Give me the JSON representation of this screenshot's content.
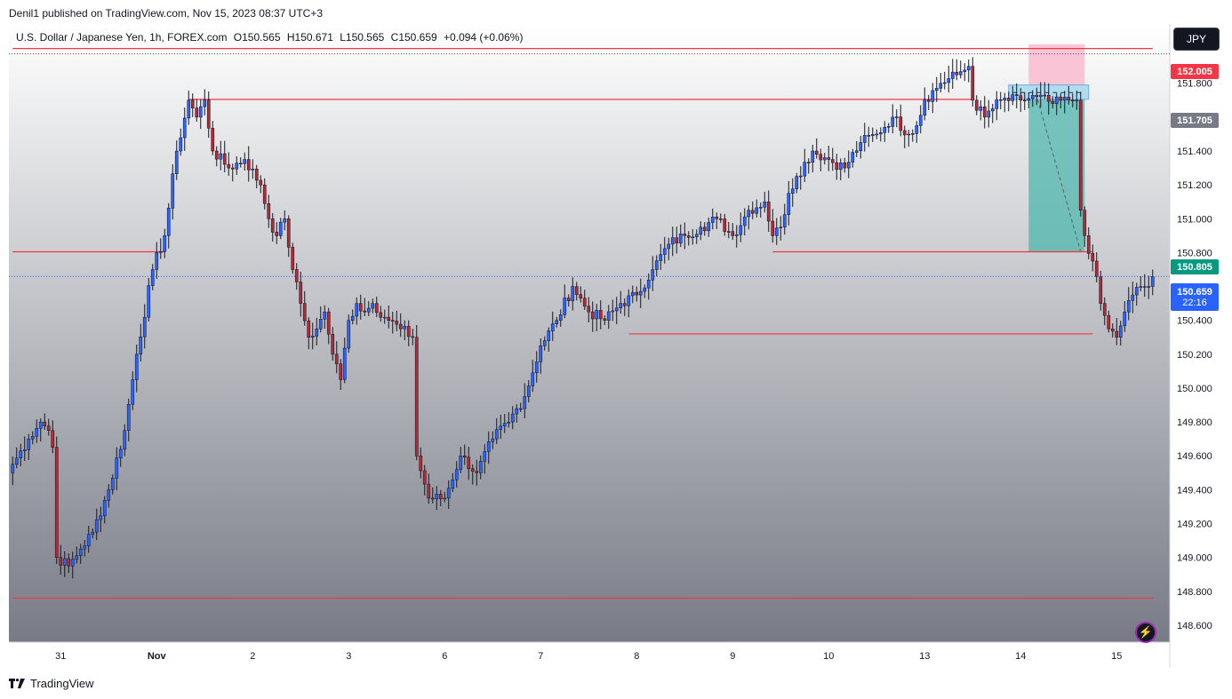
{
  "published": "Denil1 published on TradingView.com, Nov 15, 2023 08:37 UTC+3",
  "symbol": {
    "name": "U.S. Dollar / Japanese Yen, 1h, FOREX.com",
    "open": "O150.565",
    "high": "H150.671",
    "low": "L150.565",
    "close": "C150.659",
    "change": "+0.094 (+0.06%)"
  },
  "currency_button": "JPY",
  "price_tags": {
    "level_red": "152.005",
    "level_gray": "151.705",
    "level_green": "150.805",
    "last_price": "150.659",
    "countdown": "22:16"
  },
  "footer": {
    "brand": "TradingView"
  },
  "colors": {
    "bull": "#2962ff",
    "bear": "#b22833",
    "level_line": "#f23645",
    "last_price": "#2962ff",
    "stop_zone": "#f8bbd0",
    "target_zone": "#4db6ac",
    "entry_zone": "#9fd8ef"
  },
  "chart_data": {
    "type": "candlestick",
    "symbol": "USDJPY",
    "timeframe": "1h",
    "ylim": [
      148.5,
      152.15
    ],
    "y_ticks": [
      148.6,
      148.8,
      149.0,
      149.2,
      149.4,
      149.6,
      149.8,
      150.0,
      150.2,
      150.4,
      150.6,
      150.8,
      151.0,
      151.2,
      151.4,
      151.6,
      151.8
    ],
    "x_ticks": [
      "31",
      "Nov",
      "2",
      "3",
      "6",
      "7",
      "8",
      "9",
      "10",
      "13",
      "14",
      "15"
    ],
    "x_tick_index": [
      12,
      36,
      60,
      84,
      108,
      132,
      156,
      180,
      204,
      228,
      252,
      276
    ],
    "bars_total": 286,
    "anchor_points": [
      [
        0,
        149.55
      ],
      [
        4,
        149.7
      ],
      [
        7,
        149.8
      ],
      [
        9,
        149.75
      ],
      [
        10,
        149.65
      ],
      [
        11,
        149.0
      ],
      [
        14,
        148.95
      ],
      [
        17,
        149.05
      ],
      [
        20,
        149.15
      ],
      [
        24,
        149.4
      ],
      [
        28,
        149.75
      ],
      [
        31,
        150.2
      ],
      [
        35,
        150.7
      ],
      [
        38,
        150.9
      ],
      [
        41,
        151.4
      ],
      [
        44,
        151.7
      ],
      [
        46,
        151.6
      ],
      [
        48,
        151.7
      ],
      [
        50,
        151.4
      ],
      [
        54,
        151.3
      ],
      [
        58,
        151.35
      ],
      [
        62,
        151.2
      ],
      [
        64,
        151.0
      ],
      [
        66,
        150.9
      ],
      [
        68,
        151.0
      ],
      [
        70,
        150.7
      ],
      [
        72,
        150.5
      ],
      [
        74,
        150.3
      ],
      [
        76,
        150.35
      ],
      [
        78,
        150.45
      ],
      [
        80,
        150.2
      ],
      [
        82,
        150.05
      ],
      [
        84,
        150.4
      ],
      [
        86,
        150.5
      ],
      [
        88,
        150.45
      ],
      [
        90,
        150.5
      ],
      [
        94,
        150.4
      ],
      [
        97,
        150.35
      ],
      [
        100,
        150.3
      ],
      [
        101,
        149.6
      ],
      [
        104,
        149.35
      ],
      [
        108,
        149.35
      ],
      [
        112,
        149.6
      ],
      [
        116,
        149.5
      ],
      [
        120,
        149.7
      ],
      [
        124,
        149.8
      ],
      [
        128,
        149.95
      ],
      [
        132,
        150.25
      ],
      [
        136,
        150.4
      ],
      [
        140,
        150.6
      ],
      [
        144,
        150.45
      ],
      [
        148,
        150.4
      ],
      [
        152,
        150.5
      ],
      [
        156,
        150.55
      ],
      [
        160,
        150.7
      ],
      [
        164,
        150.85
      ],
      [
        168,
        150.9
      ],
      [
        172,
        150.95
      ],
      [
        176,
        151.0
      ],
      [
        180,
        150.9
      ],
      [
        184,
        151.05
      ],
      [
        188,
        151.1
      ],
      [
        190,
        150.9
      ],
      [
        192,
        150.95
      ],
      [
        194,
        151.15
      ],
      [
        196,
        151.25
      ],
      [
        200,
        151.4
      ],
      [
        204,
        151.35
      ],
      [
        208,
        151.3
      ],
      [
        212,
        151.45
      ],
      [
        216,
        151.5
      ],
      [
        220,
        151.6
      ],
      [
        224,
        151.5
      ],
      [
        226,
        151.55
      ],
      [
        228,
        151.7
      ],
      [
        232,
        151.8
      ],
      [
        236,
        151.85
      ],
      [
        239,
        151.9
      ],
      [
        240,
        151.7
      ],
      [
        243,
        151.6
      ],
      [
        247,
        151.7
      ],
      [
        252,
        151.7
      ],
      [
        256,
        151.72
      ],
      [
        260,
        151.68
      ],
      [
        264,
        151.7
      ],
      [
        266,
        151.7
      ],
      [
        267,
        151.05
      ],
      [
        268,
        150.9
      ],
      [
        270,
        150.75
      ],
      [
        272,
        150.5
      ],
      [
        274,
        150.35
      ],
      [
        276,
        150.3
      ],
      [
        278,
        150.45
      ],
      [
        280,
        150.55
      ],
      [
        282,
        150.6
      ],
      [
        284,
        150.6
      ],
      [
        285,
        150.659
      ]
    ],
    "levels": [
      {
        "price": 152.005,
        "from_index": 0,
        "to_index": 285
      },
      {
        "price": 151.705,
        "from_index": 44,
        "to_index": 240
      },
      {
        "price": 150.805,
        "from_index": 0,
        "to_index": 38
      },
      {
        "price": 150.805,
        "from_index": 190,
        "to_index": 270
      },
      {
        "price": 150.32,
        "from_index": 154,
        "to_index": 270
      },
      {
        "price": 148.76,
        "from_index": 0,
        "to_index": 295
      }
    ],
    "position": {
      "side": "short",
      "from_index": 254,
      "to_index": 268,
      "entry_top": 151.79,
      "entry": 151.705,
      "stop": 152.03,
      "target": 150.805
    },
    "last_price": 150.659
  }
}
